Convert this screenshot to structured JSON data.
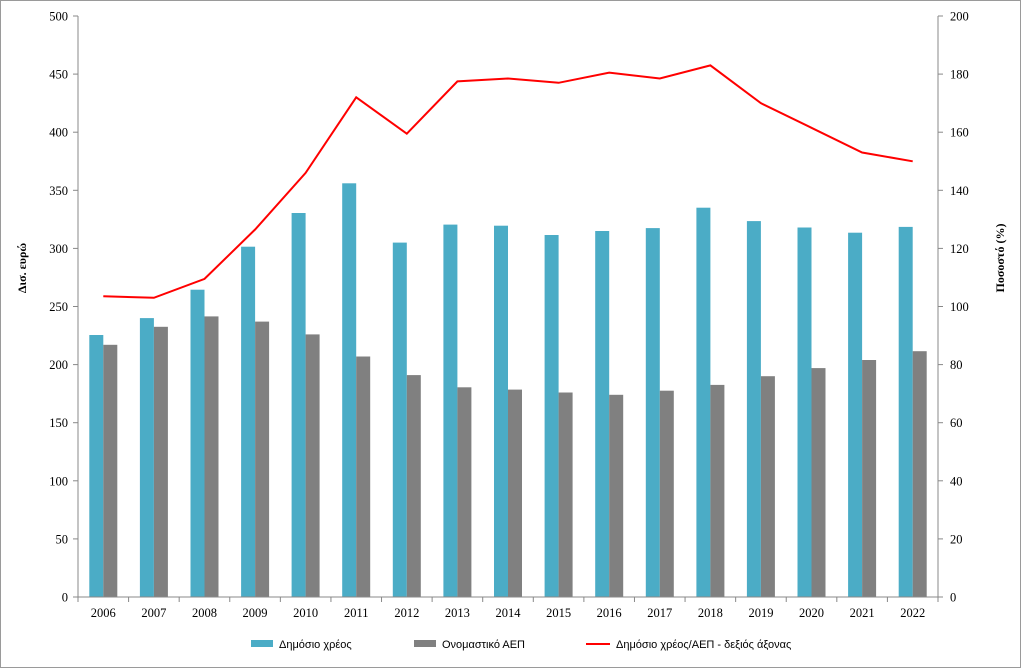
{
  "chart_data": {
    "type": "bar",
    "categories": [
      "2006",
      "2007",
      "2008",
      "2009",
      "2010",
      "2011",
      "2012",
      "2013",
      "2014",
      "2015",
      "2016",
      "2017",
      "2018",
      "2019",
      "2020",
      "2021",
      "2022"
    ],
    "series": [
      {
        "name": "Δημόσιο χρέος",
        "kind": "bar",
        "axis": "left",
        "color": "#4bacc6",
        "values": [
          225.5,
          240,
          264.5,
          301.5,
          330.5,
          356,
          305,
          320.5,
          319.5,
          311.5,
          315,
          317.5,
          335,
          323.5,
          318,
          313.5,
          318.5
        ]
      },
      {
        "name": "Ονομαστικό ΑΕΠ",
        "kind": "bar",
        "axis": "left",
        "color": "#808080",
        "values": [
          217,
          232.5,
          241.5,
          237,
          226,
          207,
          191,
          180.5,
          178.5,
          176,
          174,
          177.5,
          182.5,
          190,
          197,
          204,
          211.5
        ]
      },
      {
        "name": "Δημόσιο χρέος/ΑΕΠ - δεξιός άξονας",
        "kind": "line",
        "axis": "right",
        "color": "#ff0000",
        "values": [
          103.5,
          103,
          109.5,
          126.5,
          146,
          172,
          159.5,
          177.5,
          178.5,
          177,
          180.5,
          178.5,
          183,
          170,
          161.5,
          153,
          150
        ]
      }
    ],
    "ylabel": "Δισ. ευρώ",
    "y2label": "Ποσοστό (%)",
    "ylim": [
      0,
      500
    ],
    "y2lim": [
      0,
      200
    ],
    "yticks": [
      "0",
      "50",
      "100",
      "150",
      "200",
      "250",
      "300",
      "350",
      "400",
      "450",
      "500"
    ],
    "y2ticks": [
      "0",
      "20",
      "40",
      "60",
      "80",
      "100",
      "120",
      "140",
      "160",
      "180",
      "200"
    ],
    "grid": false,
    "legend_position": "bottom"
  }
}
